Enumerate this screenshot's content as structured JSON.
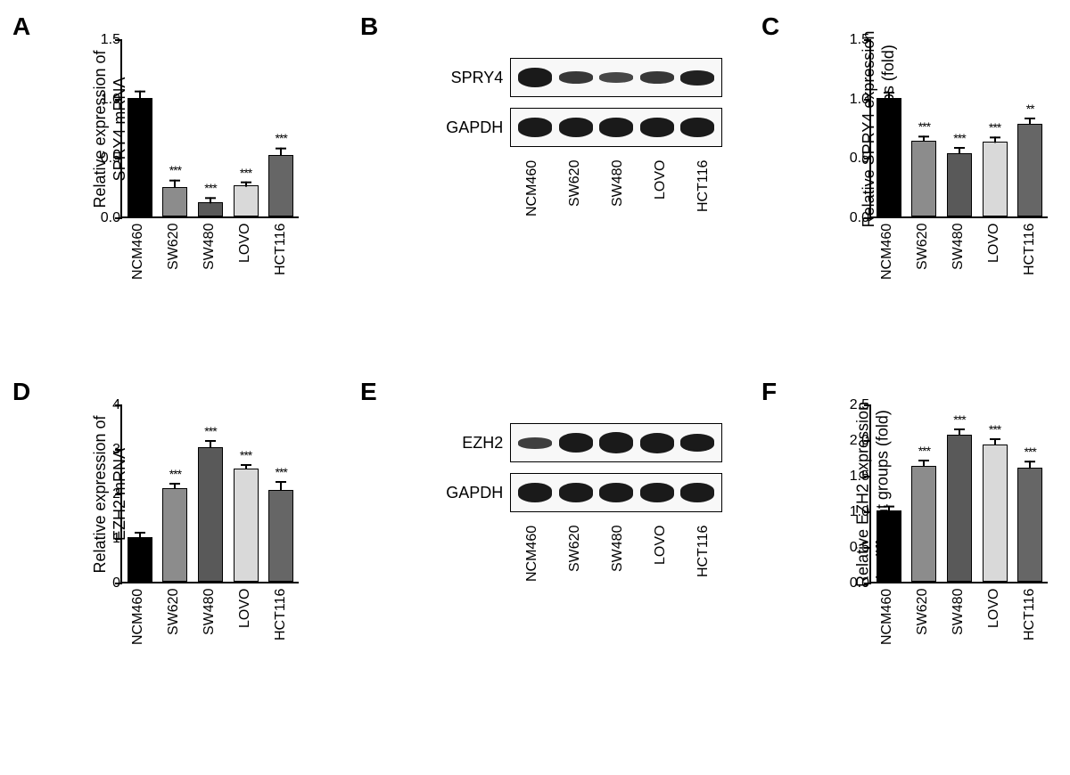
{
  "panels": {
    "A": {
      "label": "A"
    },
    "B": {
      "label": "B"
    },
    "C": {
      "label": "C"
    },
    "D": {
      "label": "D"
    },
    "E": {
      "label": "E"
    },
    "F": {
      "label": "F"
    }
  },
  "cell_lines": [
    "NCM460",
    "SW620",
    "SW480",
    "LOVO",
    "HCT116"
  ],
  "chartA": {
    "type": "bar",
    "ylabel": "Relative expression of\nSPRY4 mRNA",
    "ylim": [
      0,
      1.5
    ],
    "ytick_step": 0.5,
    "yticks": [
      "0.0",
      "0.5",
      "1.0",
      "1.5"
    ],
    "values": [
      1.0,
      0.25,
      0.12,
      0.26,
      0.52
    ],
    "errors": [
      0.07,
      0.07,
      0.05,
      0.04,
      0.07
    ],
    "sig": [
      "",
      "***",
      "***",
      "***",
      "***"
    ],
    "colors": [
      "#000000",
      "#8c8c8c",
      "#595959",
      "#d9d9d9",
      "#666666"
    ]
  },
  "blotB": {
    "rows": [
      {
        "label": "SPRY4",
        "intensities": [
          22,
          14,
          12,
          14,
          17
        ]
      },
      {
        "label": "GAPDH",
        "intensities": [
          22,
          22,
          22,
          22,
          22
        ]
      }
    ]
  },
  "chartC": {
    "type": "bar",
    "ylabel": "Relative SPRY4 expression\nin different groups (fold)",
    "ylim": [
      0,
      1.5
    ],
    "ytick_step": 0.5,
    "yticks": [
      "0.0",
      "0.5",
      "1.0",
      "1.5"
    ],
    "values": [
      1.0,
      0.64,
      0.53,
      0.63,
      0.78
    ],
    "errors": [
      0.06,
      0.05,
      0.06,
      0.05,
      0.06
    ],
    "sig": [
      "",
      "***",
      "***",
      "***",
      "**"
    ],
    "colors": [
      "#000000",
      "#8c8c8c",
      "#595959",
      "#d9d9d9",
      "#666666"
    ]
  },
  "chartD": {
    "type": "bar",
    "ylabel": "Relative expression of\nEZH2 mRNA",
    "ylim": [
      0,
      4
    ],
    "ytick_step": 1,
    "yticks": [
      "0",
      "1",
      "2",
      "3",
      "4"
    ],
    "values": [
      1.0,
      2.1,
      3.02,
      2.55,
      2.06
    ],
    "errors": [
      0.14,
      0.14,
      0.18,
      0.12,
      0.22
    ],
    "sig": [
      "",
      "***",
      "***",
      "***",
      "***"
    ],
    "colors": [
      "#000000",
      "#8c8c8c",
      "#595959",
      "#d9d9d9",
      "#666666"
    ]
  },
  "blotE": {
    "rows": [
      {
        "label": "EZH2",
        "intensities": [
          13,
          22,
          24,
          23,
          20
        ]
      },
      {
        "label": "GAPDH",
        "intensities": [
          22,
          22,
          22,
          22,
          22
        ]
      }
    ]
  },
  "chartF": {
    "type": "bar",
    "ylabel": "Relative EZH2 expression\nin different groups (fold)",
    "ylim": [
      0,
      2.5
    ],
    "ytick_step": 0.5,
    "yticks": [
      "0.0",
      "0.5",
      "1.0",
      "1.5",
      "2.0",
      "2.5"
    ],
    "values": [
      1.0,
      1.62,
      2.06,
      1.92,
      1.6
    ],
    "errors": [
      0.08,
      0.1,
      0.1,
      0.1,
      0.11
    ],
    "sig": [
      "",
      "***",
      "***",
      "***",
      "***"
    ],
    "colors": [
      "#000000",
      "#8c8c8c",
      "#595959",
      "#d9d9d9",
      "#666666"
    ]
  },
  "styling": {
    "background_color": "#ffffff",
    "axis_color": "#000000",
    "bar_border_color": "#000000",
    "label_fontsize": 18,
    "tick_fontsize": 16,
    "panel_label_fontsize": 28
  }
}
